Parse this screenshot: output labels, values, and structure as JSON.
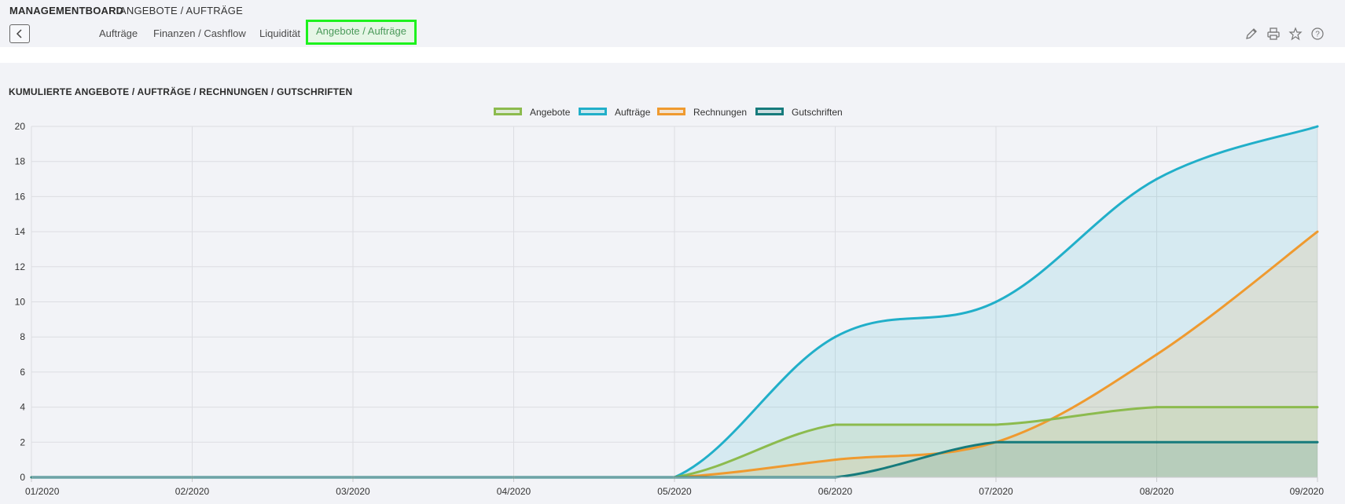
{
  "header": {
    "app_title": "MANAGEMENTBOARD",
    "breadcrumb": "ANGEBOTE / AUFTRÄGE"
  },
  "tabs": [
    {
      "label": "Aufträge"
    },
    {
      "label": "Finanzen / Cashflow"
    },
    {
      "label": "Liquidität"
    },
    {
      "label": "Angebote / Aufträge"
    }
  ],
  "active_tab": "Angebote / Aufträge",
  "toolbar_icons": [
    "pencil-icon",
    "printer-icon",
    "star-icon",
    "help-icon"
  ],
  "chart_data": {
    "type": "area",
    "title": "KUMULIERTE ANGEBOTE / AUFTRÄGE / RECHNUNGEN / GUTSCHRIFTEN",
    "legend_position": "top-center",
    "grid": true,
    "x": [
      "01/2020",
      "02/2020",
      "03/2020",
      "04/2020",
      "05/2020",
      "06/2020",
      "07/2020",
      "08/2020",
      "09/2020"
    ],
    "yticks": [
      "0",
      "2",
      "4",
      "6",
      "8",
      "10",
      "12",
      "14",
      "16",
      "18",
      "20"
    ],
    "ylim": [
      0,
      20
    ],
    "series": [
      {
        "name": "Angebote",
        "color": "#8cbb4e",
        "values": [
          0,
          0,
          0,
          0,
          0,
          3,
          3,
          4,
          4
        ]
      },
      {
        "name": "Aufträge",
        "color": "#21afc9",
        "values": [
          0,
          0,
          0,
          0,
          0,
          8,
          10,
          17,
          20
        ]
      },
      {
        "name": "Rechnungen",
        "color": "#ef9a2f",
        "values": [
          0,
          0,
          0,
          0,
          0,
          1,
          2,
          7,
          14
        ]
      },
      {
        "name": "Gutschriften",
        "color": "#167b7c",
        "values": [
          0,
          0,
          0,
          0,
          0,
          0,
          2,
          2,
          2
        ]
      }
    ]
  }
}
